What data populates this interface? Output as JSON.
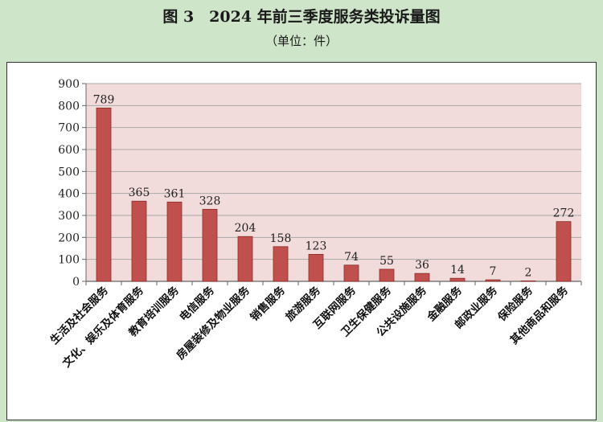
{
  "header": {
    "title": "图 3　2024 年前三季度服务类投诉量图",
    "subtitle": "（单位：件）"
  },
  "colors": {
    "bar": "#c0504d",
    "bar_edge": "#8b2c2a",
    "plot_bg": "#f2dcdb",
    "grid": "#a8a8a8"
  },
  "chart_data": {
    "type": "bar",
    "title": "图 3　2024 年前三季度服务类投诉量图",
    "subtitle": "（单位：件）",
    "categories": [
      "生活及社会服务",
      "文化、娱乐及体育服务",
      "教育培训服务",
      "电信服务",
      "房屋装修及物业服务",
      "销售服务",
      "旅游服务",
      "互联网服务",
      "卫生保健服务",
      "公共设施服务",
      "金融服务",
      "邮政业服务",
      "保险服务",
      "其他商品和服务"
    ],
    "values": [
      789,
      365,
      361,
      328,
      204,
      158,
      123,
      74,
      55,
      36,
      14,
      7,
      2,
      272
    ],
    "ylim": [
      0,
      900
    ],
    "yticks": [
      0,
      100,
      200,
      300,
      400,
      500,
      600,
      700,
      800,
      900
    ],
    "grid": true,
    "legend": "none"
  }
}
